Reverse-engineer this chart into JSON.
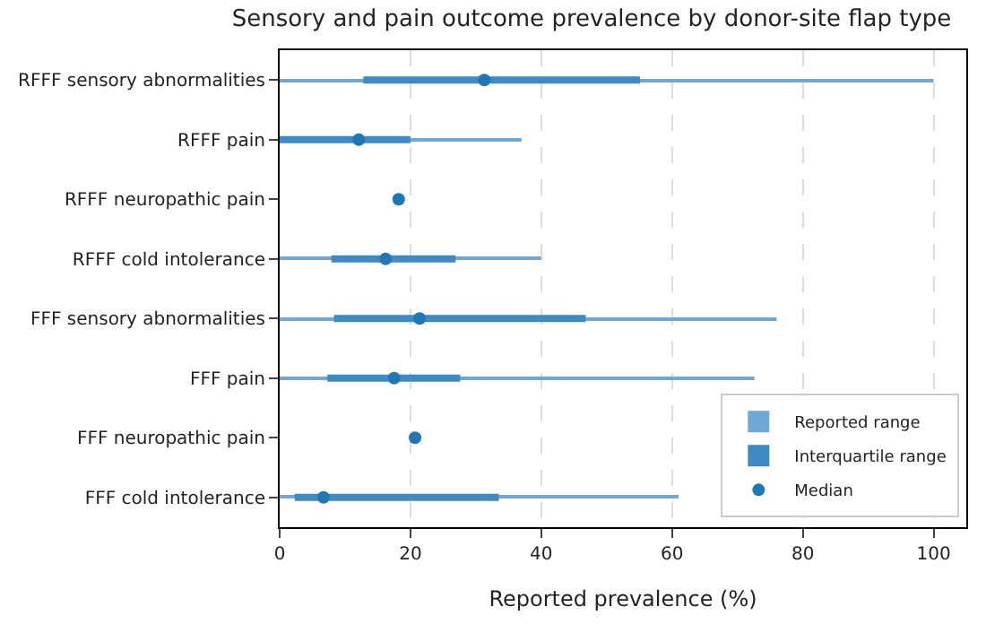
{
  "chart_data": {
    "type": "bar",
    "orientation": "horizontal",
    "title": "Sensory and pain outcome prevalence by donor-site flap type",
    "xlabel": "Reported prevalence (%)",
    "categories": [
      "RFFF sensory abnormalities",
      "RFFF pain",
      "RFFF neuropathic pain",
      "RFFF cold intolerance",
      "FFF sensory abnormalities",
      "FFF pain",
      "FFF neuropathic pain",
      "FFF cold intolerance"
    ],
    "series": [
      {
        "name": "Reported range",
        "color": "#6fa8d6",
        "base": [
          0,
          0,
          null,
          0,
          0,
          0,
          null,
          0
        ],
        "values": [
          100,
          37,
          null,
          40,
          76,
          72.6,
          null,
          61
        ]
      },
      {
        "name": "Interquartile range",
        "color": "#3d8ac4",
        "base": [
          12.8,
          0,
          null,
          7.9,
          8.3,
          7.3,
          null,
          2.3
        ],
        "values": [
          42.3,
          20,
          null,
          19,
          38.5,
          20.3,
          null,
          31.2
        ]
      },
      {
        "name": "Median",
        "type": "scatter",
        "color": "#1f77b4",
        "values": [
          31.3,
          12.1,
          18.2,
          16.2,
          21.4,
          17.5,
          20.7,
          6.7
        ]
      }
    ],
    "xlim": [
      0,
      105
    ],
    "xticks": [
      0,
      20,
      40,
      60,
      80,
      100
    ],
    "grid": "x",
    "legend": "bottom right",
    "marker": "circle"
  }
}
